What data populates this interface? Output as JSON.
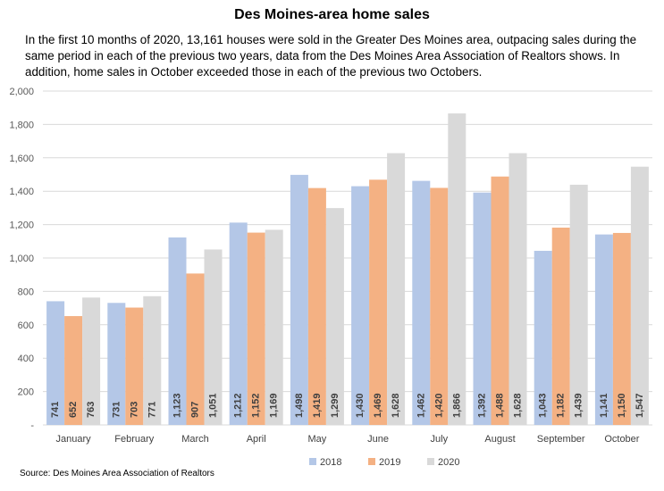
{
  "title": "Des Moines-area home sales",
  "subtitle": "In the first 10 months of 2020, 13,161 houses were sold in the Greater Des Moines area, outpacing sales during the same period in each of the previous two years, data from the Des Moines Area Association of Realtors shows. In addition, home sales in October exceeded those in each of the previous two Octobers.",
  "source": "Source: Des Moines Area Association of Realtors",
  "chart_data": {
    "type": "bar",
    "categories": [
      "January",
      "February",
      "March",
      "April",
      "May",
      "June",
      "July",
      "August",
      "September",
      "October"
    ],
    "series": [
      {
        "name": "2018",
        "color": "#b4c7e7",
        "values": [
          741,
          731,
          1123,
          1212,
          1498,
          1430,
          1462,
          1392,
          1043,
          1141
        ]
      },
      {
        "name": "2019",
        "color": "#f4b183",
        "values": [
          652,
          703,
          907,
          1152,
          1419,
          1469,
          1420,
          1488,
          1182,
          1150
        ]
      },
      {
        "name": "2020",
        "color": "#d9d9d9",
        "values": [
          763,
          771,
          1051,
          1169,
          1299,
          1628,
          1866,
          1628,
          1439,
          1547
        ]
      }
    ],
    "value_labels": [
      [
        "741",
        "731",
        "1,123",
        "1,212",
        "1,498",
        "1,430",
        "1,462",
        "1,392",
        "1,043",
        "1,141"
      ],
      [
        "652",
        "703",
        "907",
        "1,152",
        "1,419",
        "1,469",
        "1,420",
        "1,488",
        "1,182",
        "1,150"
      ],
      [
        "763",
        "771",
        "1,051",
        "1,169",
        "1,299",
        "1,628",
        "1,866",
        "1,628",
        "1,439",
        "1,547"
      ]
    ],
    "y_ticks": [
      "2,000",
      "1,800",
      "1,600",
      "1,400",
      "1,200",
      "1,000",
      "800",
      "600",
      "400",
      "200",
      "-"
    ],
    "ylim": [
      0,
      2000
    ],
    "grid": true,
    "legend_position": "bottom",
    "xlabel": "",
    "ylabel": ""
  }
}
